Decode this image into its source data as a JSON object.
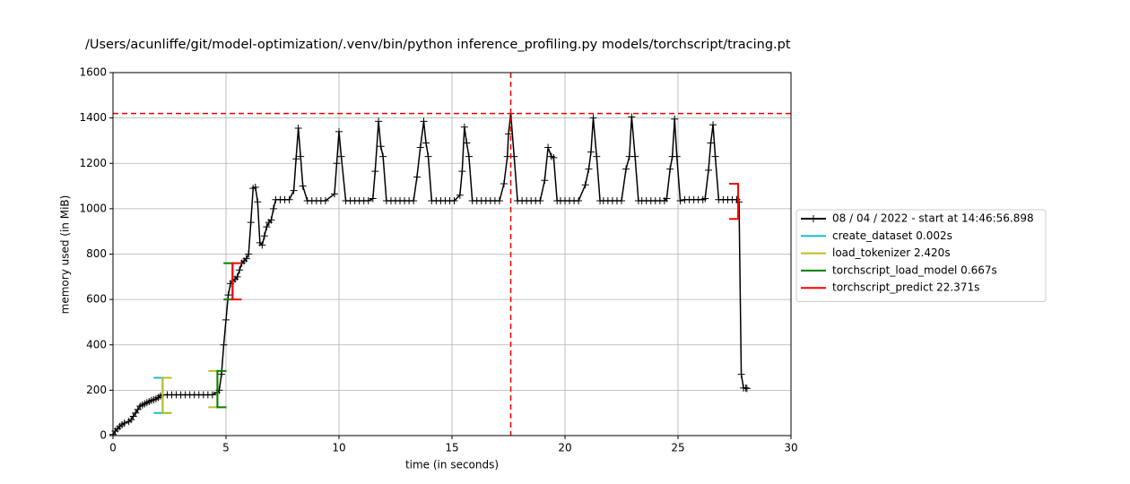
{
  "chart_data": {
    "type": "line",
    "title": "/Users/acunliffe/git/model-optimization/.venv/bin/python inference_profiling.py models/torchscript/tracing.pt",
    "x_label": "time (in seconds)",
    "y_label": "memory used (in MiB)",
    "xlim": [
      0,
      30
    ],
    "xticks": [
      0,
      5,
      10,
      15,
      20,
      25,
      30
    ],
    "ylim": [
      0,
      1600
    ],
    "yticks": [
      0,
      200,
      400,
      600,
      800,
      1000,
      1200,
      1400,
      1600
    ],
    "grid": true,
    "legend_position": "right",
    "series": [
      {
        "name": "08 / 04 / 2022 - start at 14:46:56.898",
        "color": "#000000",
        "x": [
          0,
          0.1,
          0.2,
          0.3,
          0.4,
          0.5,
          0.7,
          0.8,
          0.9,
          1.0,
          1.1,
          1.2,
          1.3,
          1.4,
          1.5,
          1.6,
          1.7,
          1.8,
          1.9,
          2.0,
          2.1,
          2.2,
          2.4,
          2.6,
          2.8,
          3.0,
          3.2,
          3.4,
          3.6,
          3.8,
          4.0,
          4.2,
          4.4,
          4.6,
          4.7,
          4.8,
          4.9,
          5.0,
          5.1,
          5.2,
          5.3,
          5.4,
          5.5,
          5.6,
          5.7,
          5.8,
          5.9,
          6.0,
          6.1,
          6.2,
          6.3,
          6.4,
          6.5,
          6.6,
          6.7,
          6.8,
          6.9,
          7.0,
          7.1,
          7.2,
          7.4,
          7.6,
          7.8,
          8.0,
          8.1,
          8.2,
          8.3,
          8.4,
          8.6,
          8.8,
          9.0,
          9.2,
          9.4,
          9.8,
          9.9,
          10.0,
          10.1,
          10.3,
          10.5,
          10.7,
          10.9,
          11.1,
          11.3,
          11.5,
          11.6,
          11.75,
          11.85,
          11.95,
          12.1,
          12.3,
          12.5,
          12.7,
          12.9,
          13.1,
          13.3,
          13.45,
          13.6,
          13.75,
          13.85,
          13.95,
          14.1,
          14.3,
          14.5,
          14.7,
          14.9,
          15.1,
          15.35,
          15.45,
          15.55,
          15.65,
          15.75,
          15.9,
          16.1,
          16.3,
          16.5,
          16.7,
          16.9,
          17.1,
          17.3,
          17.45,
          17.5,
          17.6,
          17.75,
          17.9,
          18.1,
          18.3,
          18.5,
          18.7,
          18.9,
          19.1,
          19.25,
          19.4,
          19.5,
          19.65,
          19.8,
          20.0,
          20.2,
          20.4,
          20.6,
          20.9,
          21.05,
          21.15,
          21.25,
          21.4,
          21.55,
          21.7,
          21.9,
          22.1,
          22.3,
          22.5,
          22.7,
          22.85,
          22.95,
          23.1,
          23.25,
          23.4,
          23.6,
          23.8,
          24.0,
          24.2,
          24.4,
          24.5,
          24.65,
          24.75,
          24.85,
          24.95,
          25.1,
          25.3,
          25.5,
          25.7,
          25.9,
          26.1,
          26.2,
          26.35,
          26.45,
          26.55,
          26.65,
          26.8,
          27.0,
          27.2,
          27.4,
          27.6,
          27.7,
          27.8,
          27.9,
          28.0,
          28.05
        ],
        "values": [
          5,
          20,
          30,
          40,
          48,
          55,
          62,
          70,
          85,
          100,
          115,
          130,
          135,
          140,
          145,
          150,
          155,
          158,
          162,
          168,
          175,
          180,
          180,
          180,
          180,
          180,
          180,
          180,
          180,
          180,
          180,
          180,
          180,
          190,
          200,
          270,
          400,
          510,
          620,
          670,
          680,
          690,
          700,
          730,
          760,
          770,
          780,
          800,
          940,
          1090,
          1095,
          1030,
          850,
          840,
          880,
          920,
          940,
          950,
          1000,
          1040,
          1040,
          1040,
          1040,
          1080,
          1220,
          1355,
          1230,
          1100,
          1035,
          1035,
          1035,
          1035,
          1035,
          1065,
          1200,
          1340,
          1230,
          1035,
          1035,
          1035,
          1035,
          1035,
          1035,
          1045,
          1165,
          1385,
          1275,
          1230,
          1035,
          1035,
          1035,
          1035,
          1035,
          1035,
          1035,
          1140,
          1270,
          1385,
          1290,
          1230,
          1035,
          1035,
          1035,
          1035,
          1035,
          1035,
          1060,
          1165,
          1360,
          1290,
          1230,
          1035,
          1035,
          1035,
          1035,
          1035,
          1035,
          1035,
          1110,
          1230,
          1330,
          1420,
          1230,
          1035,
          1035,
          1035,
          1035,
          1035,
          1035,
          1125,
          1270,
          1230,
          1225,
          1035,
          1035,
          1035,
          1035,
          1035,
          1035,
          1105,
          1175,
          1250,
          1400,
          1230,
          1035,
          1035,
          1035,
          1035,
          1035,
          1035,
          1175,
          1230,
          1405,
          1230,
          1035,
          1035,
          1035,
          1035,
          1035,
          1035,
          1035,
          1045,
          1175,
          1230,
          1395,
          1230,
          1035,
          1040,
          1040,
          1040,
          1040,
          1040,
          1045,
          1170,
          1290,
          1370,
          1230,
          1040,
          1040,
          1040,
          1040,
          1040,
          1030,
          270,
          210,
          210,
          208
        ]
      }
    ],
    "functions": [
      {
        "name": "create_dataset 0.002s",
        "color": "#17becf",
        "start": 2.198,
        "end": 2.2,
        "start_range": [
          100,
          255
        ],
        "end_range": [
          100,
          255
        ]
      },
      {
        "name": "load_tokenizer 2.420s",
        "color": "#bcbd22",
        "start": 2.2,
        "end": 4.62,
        "start_range": [
          100,
          255
        ],
        "end_range": [
          125,
          285
        ]
      },
      {
        "name": "torchscript_load_model 0.667s",
        "color": "#008000",
        "start": 4.62,
        "end": 5.29,
        "start_range": [
          125,
          285
        ],
        "end_range": [
          600,
          760
        ]
      },
      {
        "name": "torchscript_predict 22.371s",
        "color": "#ff0000",
        "start": 5.29,
        "end": 27.66,
        "start_range": [
          600,
          760
        ],
        "end_range": [
          955,
          1110
        ]
      }
    ],
    "max_memory": 1420,
    "max_time": 17.6
  }
}
